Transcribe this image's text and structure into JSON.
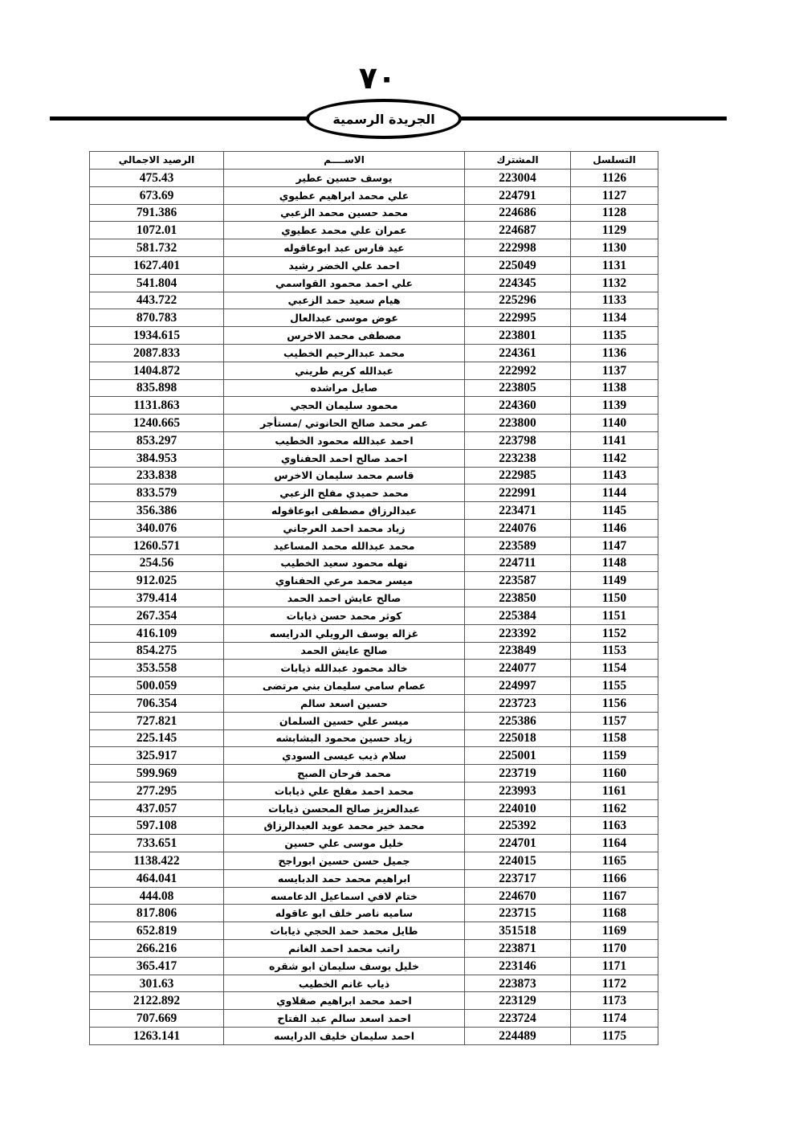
{
  "header": {
    "page_number": "٧٠",
    "gazette_title": "الجريدة الرسمية"
  },
  "table": {
    "columns": {
      "balance": "الرصيد الاجمالي",
      "name": "الاســــم",
      "subscriber": "المشترك",
      "serial": "التسلسل"
    },
    "rows": [
      {
        "serial": "1126",
        "subscriber": "223004",
        "name": "يوسف حسين عطير",
        "balance": "475.43"
      },
      {
        "serial": "1127",
        "subscriber": "224791",
        "name": "علي محمد ابراهيم عطيوي",
        "balance": "673.69"
      },
      {
        "serial": "1128",
        "subscriber": "224686",
        "name": "محمد حسين محمد الزعبي",
        "balance": "791.386"
      },
      {
        "serial": "1129",
        "subscriber": "224687",
        "name": "عمران علي محمد عطيوي",
        "balance": "1072.01"
      },
      {
        "serial": "1130",
        "subscriber": "222998",
        "name": "عيد فارس عبد ابوعاقوله",
        "balance": "581.732"
      },
      {
        "serial": "1131",
        "subscriber": "225049",
        "name": "احمد علي الخضر رشيد",
        "balance": "1627.401"
      },
      {
        "serial": "1132",
        "subscriber": "224345",
        "name": "علي احمد محمود القواسمي",
        "balance": "541.804"
      },
      {
        "serial": "1133",
        "subscriber": "225296",
        "name": "هيام سعيد حمد الزعبي",
        "balance": "443.722"
      },
      {
        "serial": "1134",
        "subscriber": "222995",
        "name": "عوض موسى عبدالعال",
        "balance": "870.783"
      },
      {
        "serial": "1135",
        "subscriber": "223801",
        "name": "مصطفى محمد الاخرس",
        "balance": "1934.615"
      },
      {
        "serial": "1136",
        "subscriber": "224361",
        "name": "محمد عبدالرحيم الخطيب",
        "balance": "2087.833"
      },
      {
        "serial": "1137",
        "subscriber": "222992",
        "name": "عبدالله كريم  طريني",
        "balance": "1404.872"
      },
      {
        "serial": "1138",
        "subscriber": "223805",
        "name": "صايل مراشده",
        "balance": "835.898"
      },
      {
        "serial": "1139",
        "subscriber": "224360",
        "name": "محمود سليمان الحجي",
        "balance": "1131.863"
      },
      {
        "serial": "1140",
        "subscriber": "223800",
        "name": "عمر محمد صالح الحانوتي  /مستأجر",
        "balance": "1240.665"
      },
      {
        "serial": "1141",
        "subscriber": "223798",
        "name": "احمد عبدالله محمود الخطيب",
        "balance": "853.297"
      },
      {
        "serial": "1142",
        "subscriber": "223238",
        "name": "احمد صالح احمد الحفناوي",
        "balance": "384.953"
      },
      {
        "serial": "1143",
        "subscriber": "222985",
        "name": "قاسم محمد سليمان الاخرس",
        "balance": "233.838"
      },
      {
        "serial": "1144",
        "subscriber": "222991",
        "name": "محمد حميدي مفلح الزعبي",
        "balance": "833.579"
      },
      {
        "serial": "1145",
        "subscriber": "223471",
        "name": "عبدالرزاق مصطفى ابوعاقوله",
        "balance": "356.386"
      },
      {
        "serial": "1146",
        "subscriber": "224076",
        "name": "زياد محمد احمد العرجاني",
        "balance": "340.076"
      },
      {
        "serial": "1147",
        "subscriber": "223589",
        "name": "محمد عبدالله محمد المساعيد",
        "balance": "1260.571"
      },
      {
        "serial": "1148",
        "subscriber": "224711",
        "name": "نهله محمود سعيد الخطيب",
        "balance": "254.56"
      },
      {
        "serial": "1149",
        "subscriber": "223587",
        "name": "ميسر محمد مرعي الحفناوي",
        "balance": "912.025"
      },
      {
        "serial": "1150",
        "subscriber": "223850",
        "name": "صالح عايش احمد الحمد",
        "balance": "379.414"
      },
      {
        "serial": "1151",
        "subscriber": "225384",
        "name": "كوثر محمد حسن ذيابات",
        "balance": "267.354"
      },
      {
        "serial": "1152",
        "subscriber": "223392",
        "name": "غزاله يوسف الرويلي الدرايسه",
        "balance": "416.109"
      },
      {
        "serial": "1153",
        "subscriber": "223849",
        "name": "صالح عايش الحمد",
        "balance": "854.275"
      },
      {
        "serial": "1154",
        "subscriber": "224077",
        "name": "خالد محمود عبدالله ذيابات",
        "balance": "353.558"
      },
      {
        "serial": "1155",
        "subscriber": "224997",
        "name": "عصام سامي سليمان بني مرتضى",
        "balance": "500.059"
      },
      {
        "serial": "1156",
        "subscriber": "223723",
        "name": "حسين اسعد سالم",
        "balance": "706.354"
      },
      {
        "serial": "1157",
        "subscriber": "225386",
        "name": "ميسر علي حسين السلمان",
        "balance": "727.821"
      },
      {
        "serial": "1158",
        "subscriber": "225018",
        "name": "زياد حسين محمود البشابشه",
        "balance": "225.145"
      },
      {
        "serial": "1159",
        "subscriber": "225001",
        "name": "سلام ذيب عيسى السودي",
        "balance": "325.917"
      },
      {
        "serial": "1160",
        "subscriber": "223719",
        "name": "محمد فرحان الصبح",
        "balance": "599.969"
      },
      {
        "serial": "1161",
        "subscriber": "223993",
        "name": "محمد احمد مفلح علي ذيابات",
        "balance": "277.295"
      },
      {
        "serial": "1162",
        "subscriber": "224010",
        "name": "عبدالعزيز صالح المحسن ذيابات",
        "balance": "437.057"
      },
      {
        "serial": "1163",
        "subscriber": "225392",
        "name": "محمد خير محمد عويد العبدالرزاق",
        "balance": "597.108"
      },
      {
        "serial": "1164",
        "subscriber": "224701",
        "name": "خليل موسى علي حسين",
        "balance": "733.651"
      },
      {
        "serial": "1165",
        "subscriber": "224015",
        "name": "جميل حسن حسين ابوراجح",
        "balance": "1138.422"
      },
      {
        "serial": "1166",
        "subscriber": "223717",
        "name": "ابراهيم محمد حمد الدبايسه",
        "balance": "464.041"
      },
      {
        "serial": "1167",
        "subscriber": "224670",
        "name": "ختام لافي اسماعيل الدعامسه",
        "balance": "444.08"
      },
      {
        "serial": "1168",
        "subscriber": "223715",
        "name": "ساميه ناصر خلف ابو عاقوله",
        "balance": "817.806"
      },
      {
        "serial": "1169",
        "subscriber": "351518",
        "name": "طايل محمد حمد الحجي ذيابات",
        "balance": "652.819"
      },
      {
        "serial": "1170",
        "subscriber": "223871",
        "name": "راتب محمد احمد الغانم",
        "balance": "266.216"
      },
      {
        "serial": "1171",
        "subscriber": "223146",
        "name": "خليل يوسف سليمان ابو شقره",
        "balance": "365.417"
      },
      {
        "serial": "1172",
        "subscriber": "223873",
        "name": "ذياب غانم الخطيب",
        "balance": "301.63"
      },
      {
        "serial": "1173",
        "subscriber": "223129",
        "name": "احمد محمد ابراهيم صقلاوي",
        "balance": "2122.892"
      },
      {
        "serial": "1174",
        "subscriber": "223724",
        "name": "احمد اسعد سالم عبد الفتاح",
        "balance": "707.669"
      },
      {
        "serial": "1175",
        "subscriber": "224489",
        "name": "احمد سليمان خليف الدرايسه",
        "balance": "1263.141"
      }
    ]
  }
}
